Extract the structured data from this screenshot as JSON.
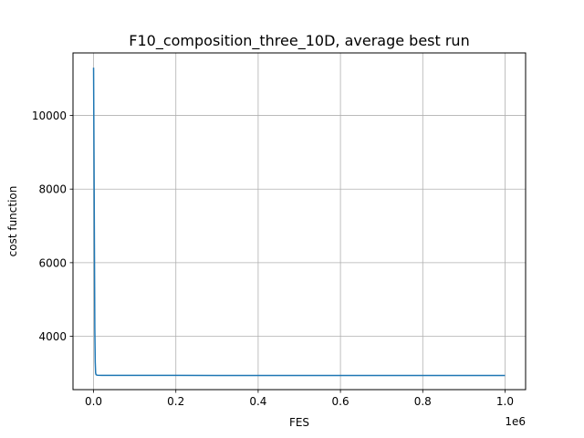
{
  "chart_data": {
    "type": "line",
    "title": "F10_composition_three_10D, average best run",
    "xlabel": "FES",
    "ylabel": "cost function",
    "x_offset_text": "1e6",
    "xlim": [
      -0.05,
      1.05
    ],
    "ylim": [
      2550,
      11700
    ],
    "x_scale_exponent": 6,
    "grid": true,
    "line_color": "#1f77b4",
    "x_ticks": [
      0.0,
      0.2,
      0.4,
      0.6,
      0.8,
      1.0
    ],
    "x_tick_labels": [
      "0.0",
      "0.2",
      "0.4",
      "0.6",
      "0.8",
      "1.0"
    ],
    "y_ticks": [
      4000,
      6000,
      8000,
      10000
    ],
    "y_tick_labels": [
      "4000",
      "6000",
      "8000",
      "10000"
    ],
    "series": [
      {
        "x": [
          0,
          1000,
          2000,
          3000,
          4000,
          5000,
          6000,
          8000,
          10000,
          20000,
          50000,
          100000,
          200000,
          300000,
          400000,
          500000,
          600000,
          700000,
          800000,
          900000,
          1000000
        ],
        "y": [
          11300,
          9000,
          6500,
          4200,
          3300,
          3000,
          2960,
          2945,
          2940,
          2938,
          2937,
          2936,
          2936,
          2935,
          2935,
          2935,
          2935,
          2935,
          2935,
          2935,
          2935
        ]
      }
    ]
  }
}
